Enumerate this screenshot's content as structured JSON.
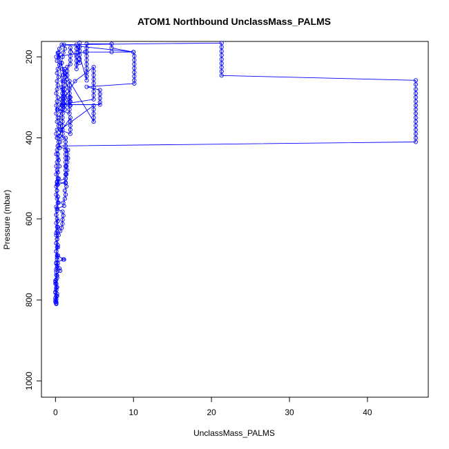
{
  "chart_data": {
    "type": "scatter",
    "title": "ATOM1 Northbound UnclassMass_PALMS",
    "xlabel": "UnclassMass_PALMS",
    "ylabel": "Pressure (mbar)",
    "xlim": [
      -1.8,
      47.8
    ],
    "ylim": [
      1040,
      162
    ],
    "y_reversed": true,
    "x_ticks": [
      0,
      10,
      20,
      30,
      40
    ],
    "y_ticks": [
      200,
      400,
      600,
      800,
      1000
    ],
    "grid": false,
    "legend": "none",
    "point_style": "open-circle",
    "connect_points": true,
    "color": "#0000ff",
    "series": [
      {
        "values": [
          [
            0.1,
            810
          ],
          [
            0.0,
            805
          ],
          [
            0.1,
            798
          ],
          [
            0.2,
            790
          ],
          [
            0.0,
            782
          ],
          [
            0.1,
            775
          ],
          [
            0.2,
            768
          ],
          [
            0.1,
            760
          ],
          [
            0.0,
            752
          ],
          [
            0.2,
            745
          ],
          [
            0.1,
            738
          ],
          [
            0.6,
            728
          ],
          [
            0.5,
            722
          ],
          [
            0.2,
            715
          ],
          [
            0.1,
            708
          ],
          [
            1.0,
            700
          ],
          [
            1.1,
            700
          ],
          [
            0.2,
            690
          ],
          [
            0.1,
            680
          ],
          [
            0.3,
            670
          ],
          [
            0.1,
            660
          ],
          [
            0.2,
            650
          ],
          [
            0.4,
            640
          ],
          [
            0.6,
            630
          ],
          [
            0.8,
            622
          ],
          [
            0.9,
            612
          ],
          [
            0.9,
            602
          ],
          [
            1.0,
            592
          ],
          [
            0.9,
            582
          ],
          [
            0.2,
            575
          ],
          [
            1.1,
            568
          ],
          [
            1.0,
            560
          ],
          [
            1.2,
            550
          ],
          [
            1.3,
            540
          ],
          [
            1.2,
            530
          ],
          [
            1.4,
            520
          ],
          [
            1.3,
            512
          ],
          [
            0.2,
            508
          ],
          [
            1.3,
            500
          ],
          [
            1.4,
            490
          ],
          [
            1.5,
            480
          ],
          [
            1.4,
            470
          ],
          [
            1.5,
            460
          ],
          [
            1.6,
            450
          ],
          [
            1.5,
            440
          ],
          [
            1.6,
            430
          ],
          [
            0.3,
            420
          ],
          [
            46.2,
            410
          ],
          [
            46.2,
            400
          ],
          [
            46.2,
            390
          ],
          [
            46.2,
            380
          ],
          [
            46.2,
            370
          ],
          [
            46.2,
            360
          ],
          [
            46.2,
            350
          ],
          [
            46.2,
            340
          ],
          [
            46.2,
            330
          ],
          [
            46.2,
            320
          ],
          [
            46.2,
            310
          ],
          [
            46.2,
            300
          ],
          [
            46.2,
            290
          ],
          [
            46.2,
            280
          ],
          [
            46.2,
            268
          ],
          [
            46.2,
            258
          ],
          [
            21.3,
            246
          ],
          [
            21.3,
            236
          ],
          [
            21.3,
            226
          ],
          [
            21.3,
            216
          ],
          [
            21.3,
            206
          ],
          [
            21.3,
            196
          ],
          [
            21.3,
            186
          ],
          [
            21.3,
            176
          ],
          [
            21.3,
            166
          ],
          [
            0.8,
            170
          ],
          [
            0.5,
            180
          ],
          [
            0.3,
            190
          ],
          [
            0.4,
            200
          ],
          [
            0.2,
            210
          ],
          [
            0.5,
            220
          ],
          [
            0.3,
            230
          ],
          [
            0.2,
            240
          ],
          [
            0.4,
            250
          ],
          [
            0.2,
            260
          ],
          [
            0.3,
            270
          ],
          [
            0.2,
            280
          ],
          [
            0.1,
            290
          ],
          [
            0.3,
            300
          ],
          [
            0.2,
            310
          ],
          [
            0.1,
            320
          ],
          [
            0.2,
            330
          ],
          [
            0.1,
            340
          ],
          [
            0.3,
            350
          ],
          [
            0.2,
            360
          ],
          [
            0.4,
            370
          ],
          [
            0.2,
            380
          ],
          [
            0.1,
            390
          ],
          [
            0.2,
            400
          ],
          [
            0.4,
            410
          ],
          [
            0.3,
            420
          ],
          [
            0.2,
            430
          ],
          [
            0.1,
            440
          ],
          [
            0.3,
            450
          ],
          [
            0.2,
            460
          ],
          [
            0.1,
            470
          ],
          [
            0.2,
            480
          ],
          [
            0.1,
            490
          ],
          [
            0.3,
            500
          ],
          [
            0.2,
            510
          ],
          [
            0.1,
            520
          ],
          [
            0.2,
            530
          ],
          [
            0.1,
            540
          ],
          [
            0.2,
            550
          ],
          [
            0.3,
            560
          ],
          [
            0.1,
            570
          ],
          [
            0.2,
            580
          ],
          [
            0.1,
            590
          ],
          [
            0.2,
            600
          ],
          [
            0.1,
            610
          ],
          [
            0.3,
            620
          ],
          [
            0.2,
            630
          ],
          [
            0.1,
            640
          ],
          [
            0.2,
            650
          ],
          [
            0.1,
            660
          ],
          [
            0.2,
            670
          ],
          [
            0.1,
            680
          ],
          [
            0.3,
            690
          ],
          [
            0.2,
            700
          ],
          [
            0.1,
            710
          ],
          [
            0.2,
            720
          ],
          [
            0.1,
            730
          ],
          [
            0.2,
            740
          ],
          [
            0.1,
            750
          ],
          [
            0.0,
            760
          ],
          [
            0.1,
            770
          ],
          [
            0.0,
            780
          ],
          [
            0.1,
            790
          ],
          [
            0.0,
            800
          ],
          [
            0.1,
            808
          ]
        ]
      },
      {
        "values": [
          [
            0.1,
            805
          ],
          [
            0.0,
            795
          ],
          [
            0.2,
            785
          ],
          [
            0.1,
            770
          ],
          [
            0.0,
            755
          ],
          [
            0.2,
            740
          ],
          [
            0.1,
            725
          ],
          [
            0.3,
            710
          ],
          [
            0.2,
            695
          ],
          [
            0.1,
            680
          ],
          [
            0.3,
            665
          ],
          [
            0.2,
            650
          ],
          [
            0.1,
            635
          ],
          [
            0.2,
            620
          ],
          [
            0.3,
            605
          ],
          [
            0.1,
            590
          ],
          [
            0.2,
            575
          ],
          [
            0.4,
            560
          ],
          [
            0.3,
            545
          ],
          [
            0.2,
            530
          ],
          [
            0.3,
            515
          ],
          [
            0.4,
            500
          ],
          [
            0.3,
            485
          ],
          [
            0.5,
            470
          ],
          [
            0.4,
            455
          ],
          [
            0.3,
            440
          ],
          [
            0.5,
            425
          ],
          [
            0.6,
            410
          ],
          [
            0.5,
            395
          ],
          [
            0.7,
            380
          ],
          [
            0.6,
            365
          ],
          [
            0.5,
            350
          ],
          [
            0.7,
            335
          ],
          [
            0.8,
            320
          ],
          [
            0.7,
            305
          ],
          [
            0.9,
            290
          ],
          [
            0.8,
            275
          ],
          [
            0.9,
            260
          ],
          [
            1.0,
            245
          ],
          [
            0.9,
            230
          ],
          [
            0.8,
            215
          ],
          [
            0.9,
            200
          ],
          [
            1.0,
            190
          ],
          [
            1.2,
            180
          ],
          [
            1.1,
            170
          ],
          [
            10.0,
            188
          ],
          [
            10.1,
            198
          ],
          [
            10.1,
            208
          ],
          [
            10.1,
            218
          ],
          [
            10.1,
            228
          ],
          [
            10.1,
            238
          ],
          [
            10.1,
            248
          ],
          [
            10.1,
            258
          ],
          [
            10.1,
            266
          ],
          [
            4.0,
            274
          ],
          [
            5.7,
            282
          ],
          [
            5.7,
            292
          ],
          [
            5.7,
            302
          ],
          [
            5.7,
            312
          ],
          [
            5.7,
            318
          ],
          [
            0.5,
            318
          ],
          [
            4.9,
            305
          ],
          [
            4.9,
            295
          ],
          [
            4.9,
            285
          ],
          [
            4.9,
            275
          ],
          [
            4.9,
            265
          ],
          [
            4.9,
            255
          ],
          [
            4.9,
            245
          ],
          [
            4.9,
            235
          ],
          [
            4.9,
            225
          ],
          [
            2.5,
            260
          ],
          [
            0.3,
            330
          ],
          [
            1.8,
            340
          ],
          [
            1.8,
            330
          ],
          [
            1.8,
            320
          ],
          [
            1.8,
            310
          ],
          [
            1.8,
            300
          ],
          [
            1.8,
            290
          ],
          [
            1.8,
            280
          ],
          [
            1.8,
            270
          ],
          [
            1.8,
            260
          ],
          [
            4.9,
            360
          ],
          [
            4.9,
            350
          ],
          [
            4.9,
            340
          ],
          [
            4.9,
            330
          ],
          [
            4.9,
            320
          ],
          [
            0.6,
            380
          ],
          [
            1.9,
            390
          ],
          [
            1.9,
            380
          ],
          [
            1.9,
            370
          ],
          [
            1.9,
            360
          ],
          [
            1.9,
            350
          ],
          [
            0.2,
            400
          ]
        ]
      },
      {
        "values": [
          [
            0.1,
            200
          ],
          [
            3.8,
            188
          ],
          [
            7.2,
            188
          ],
          [
            10.0,
            188
          ],
          [
            7.2,
            178
          ],
          [
            7.2,
            168
          ],
          [
            4.0,
            168
          ],
          [
            4.0,
            178
          ],
          [
            4.0,
            188
          ],
          [
            4.0,
            198
          ],
          [
            4.0,
            208
          ],
          [
            4.0,
            218
          ],
          [
            4.0,
            228
          ],
          [
            4.0,
            238
          ],
          [
            4.0,
            248
          ],
          [
            4.0,
            258
          ],
          [
            2.7,
            170
          ],
          [
            2.7,
            180
          ],
          [
            2.7,
            190
          ],
          [
            2.7,
            200
          ],
          [
            2.7,
            210
          ],
          [
            2.7,
            220
          ],
          [
            2.7,
            230
          ],
          [
            3.1,
            165
          ],
          [
            3.1,
            175
          ],
          [
            3.1,
            185
          ],
          [
            3.1,
            195
          ],
          [
            3.1,
            205
          ],
          [
            3.1,
            215
          ],
          [
            1.9,
            178
          ],
          [
            1.9,
            188
          ],
          [
            1.9,
            198
          ],
          [
            1.9,
            208
          ],
          [
            1.9,
            218
          ],
          [
            1.5,
            225
          ],
          [
            1.5,
            235
          ],
          [
            1.5,
            245
          ],
          [
            1.5,
            255
          ],
          [
            1.2,
            230
          ],
          [
            1.2,
            240
          ],
          [
            1.2,
            250
          ],
          [
            1.2,
            260
          ],
          [
            1.2,
            270
          ],
          [
            1.2,
            280
          ],
          [
            1.2,
            290
          ],
          [
            1.2,
            300
          ],
          [
            1.2,
            310
          ],
          [
            1.2,
            320
          ],
          [
            1.2,
            330
          ],
          [
            0.4,
            190
          ],
          [
            1.9,
            300
          ],
          [
            1.9,
            310
          ],
          [
            1.9,
            320
          ],
          [
            0.9,
            280
          ],
          [
            0.9,
            290
          ],
          [
            0.9,
            300
          ],
          [
            0.9,
            310
          ],
          [
            0.9,
            320
          ],
          [
            0.9,
            330
          ],
          [
            0.9,
            340
          ],
          [
            0.9,
            350
          ],
          [
            0.9,
            360
          ],
          [
            0.9,
            370
          ],
          [
            0.9,
            380
          ],
          [
            0.9,
            390
          ],
          [
            0.9,
            400
          ],
          [
            1.3,
            400
          ],
          [
            1.3,
            410
          ],
          [
            1.3,
            420
          ],
          [
            1.3,
            430
          ],
          [
            1.3,
            440
          ],
          [
            1.3,
            450
          ],
          [
            1.3,
            460
          ],
          [
            1.3,
            470
          ],
          [
            1.3,
            480
          ],
          [
            1.3,
            490
          ],
          [
            1.3,
            500
          ],
          [
            1.3,
            510
          ],
          [
            0.2,
            515
          ]
        ]
      }
    ]
  }
}
